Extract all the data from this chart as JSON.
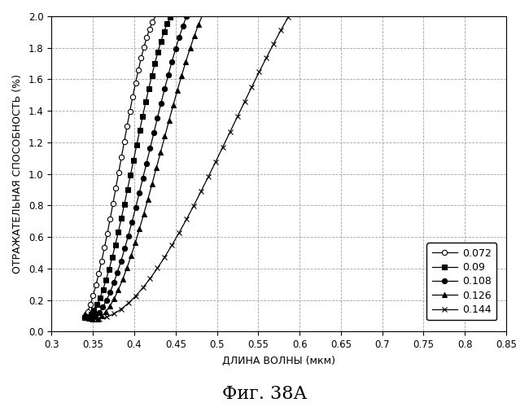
{
  "title": "Фиг. 38А",
  "xlabel": "ДЛИНА ВОЛНЫ (мкм)",
  "ylabel": "ОТРАЖАТЕЛЬНАЯ СПОСОБНОСТЬ (%)",
  "xlim": [
    0.3,
    0.85
  ],
  "ylim": [
    0.0,
    2.0
  ],
  "xticks": [
    0.3,
    0.35,
    0.4,
    0.45,
    0.5,
    0.55,
    0.6,
    0.65,
    0.7,
    0.75,
    0.8,
    0.85
  ],
  "yticks": [
    0.0,
    0.2,
    0.4,
    0.6,
    0.8,
    1.0,
    1.2,
    1.4,
    1.6,
    1.8,
    2.0
  ],
  "series": [
    {
      "label": "0.072",
      "marker": "o",
      "markerfacecolor": "white",
      "color": "black",
      "points": [
        [
          0.34,
          0.1
        ],
        [
          0.345,
          0.14
        ],
        [
          0.35,
          0.22
        ],
        [
          0.355,
          0.32
        ],
        [
          0.36,
          0.43
        ],
        [
          0.365,
          0.56
        ],
        [
          0.37,
          0.7
        ],
        [
          0.375,
          0.84
        ],
        [
          0.38,
          0.98
        ],
        [
          0.385,
          1.12
        ],
        [
          0.39,
          1.27
        ],
        [
          0.395,
          1.41
        ],
        [
          0.4,
          1.55
        ],
        [
          0.405,
          1.65
        ],
        [
          0.41,
          1.76
        ],
        [
          0.415,
          1.86
        ],
        [
          0.42,
          1.94
        ],
        [
          0.425,
          2.0
        ]
      ]
    },
    {
      "label": "0.09",
      "marker": "s",
      "markerfacecolor": "black",
      "color": "black",
      "points": [
        [
          0.34,
          0.08
        ],
        [
          0.345,
          0.1
        ],
        [
          0.35,
          0.13
        ],
        [
          0.355,
          0.18
        ],
        [
          0.36,
          0.24
        ],
        [
          0.365,
          0.31
        ],
        [
          0.37,
          0.4
        ],
        [
          0.375,
          0.5
        ],
        [
          0.38,
          0.61
        ],
        [
          0.385,
          0.73
        ],
        [
          0.39,
          0.86
        ],
        [
          0.395,
          0.99
        ],
        [
          0.4,
          1.12
        ],
        [
          0.405,
          1.24
        ],
        [
          0.41,
          1.36
        ],
        [
          0.415,
          1.48
        ],
        [
          0.42,
          1.59
        ],
        [
          0.425,
          1.7
        ],
        [
          0.43,
          1.8
        ],
        [
          0.435,
          1.89
        ],
        [
          0.44,
          1.97
        ],
        [
          0.445,
          2.0
        ]
      ]
    },
    {
      "label": "0.108",
      "marker": "o",
      "markerfacecolor": "black",
      "color": "black",
      "points": [
        [
          0.34,
          0.07
        ],
        [
          0.345,
          0.08
        ],
        [
          0.35,
          0.1
        ],
        [
          0.355,
          0.12
        ],
        [
          0.36,
          0.15
        ],
        [
          0.365,
          0.19
        ],
        [
          0.37,
          0.24
        ],
        [
          0.375,
          0.31
        ],
        [
          0.38,
          0.38
        ],
        [
          0.385,
          0.46
        ],
        [
          0.39,
          0.55
        ],
        [
          0.395,
          0.65
        ],
        [
          0.4,
          0.75
        ],
        [
          0.405,
          0.85
        ],
        [
          0.41,
          0.96
        ],
        [
          0.415,
          1.07
        ],
        [
          0.42,
          1.18
        ],
        [
          0.425,
          1.29
        ],
        [
          0.43,
          1.4
        ],
        [
          0.435,
          1.51
        ],
        [
          0.44,
          1.61
        ],
        [
          0.445,
          1.71
        ],
        [
          0.45,
          1.8
        ],
        [
          0.455,
          1.89
        ],
        [
          0.46,
          1.96
        ],
        [
          0.465,
          2.0
        ]
      ]
    },
    {
      "label": "0.126",
      "marker": "^",
      "markerfacecolor": "black",
      "color": "black",
      "points": [
        [
          0.34,
          0.07
        ],
        [
          0.345,
          0.08
        ],
        [
          0.35,
          0.09
        ],
        [
          0.355,
          0.1
        ],
        [
          0.36,
          0.12
        ],
        [
          0.365,
          0.14
        ],
        [
          0.37,
          0.17
        ],
        [
          0.375,
          0.21
        ],
        [
          0.38,
          0.26
        ],
        [
          0.385,
          0.31
        ],
        [
          0.39,
          0.38
        ],
        [
          0.395,
          0.45
        ],
        [
          0.4,
          0.53
        ],
        [
          0.405,
          0.62
        ],
        [
          0.41,
          0.71
        ],
        [
          0.415,
          0.8
        ],
        [
          0.42,
          0.9
        ],
        [
          0.425,
          1.0
        ],
        [
          0.43,
          1.1
        ],
        [
          0.435,
          1.2
        ],
        [
          0.44,
          1.3
        ],
        [
          0.445,
          1.4
        ],
        [
          0.45,
          1.5
        ],
        [
          0.455,
          1.59
        ],
        [
          0.46,
          1.68
        ],
        [
          0.465,
          1.77
        ],
        [
          0.47,
          1.85
        ],
        [
          0.475,
          1.92
        ],
        [
          0.48,
          1.98
        ],
        [
          0.485,
          2.0
        ]
      ]
    },
    {
      "label": "0.144",
      "marker": "x",
      "markerfacecolor": "black",
      "color": "black",
      "points": [
        [
          0.34,
          0.065
        ],
        [
          0.345,
          0.07
        ],
        [
          0.35,
          0.075
        ],
        [
          0.355,
          0.082
        ],
        [
          0.36,
          0.09
        ],
        [
          0.365,
          0.1
        ],
        [
          0.37,
          0.11
        ],
        [
          0.375,
          0.125
        ],
        [
          0.38,
          0.14
        ],
        [
          0.385,
          0.155
        ],
        [
          0.39,
          0.175
        ],
        [
          0.395,
          0.195
        ],
        [
          0.4,
          0.22
        ],
        [
          0.405,
          0.245
        ],
        [
          0.41,
          0.275
        ],
        [
          0.415,
          0.305
        ],
        [
          0.42,
          0.338
        ],
        [
          0.425,
          0.375
        ],
        [
          0.43,
          0.413
        ],
        [
          0.435,
          0.453
        ],
        [
          0.44,
          0.495
        ],
        [
          0.445,
          0.538
        ],
        [
          0.45,
          0.583
        ],
        [
          0.455,
          0.63
        ],
        [
          0.46,
          0.677
        ],
        [
          0.465,
          0.726
        ],
        [
          0.47,
          0.776
        ],
        [
          0.475,
          0.827
        ],
        [
          0.48,
          0.879
        ],
        [
          0.485,
          0.932
        ],
        [
          0.49,
          0.986
        ],
        [
          0.495,
          1.04
        ],
        [
          0.5,
          1.095
        ],
        [
          0.505,
          1.15
        ],
        [
          0.51,
          1.205
        ],
        [
          0.515,
          1.26
        ],
        [
          0.52,
          1.315
        ],
        [
          0.525,
          1.37
        ],
        [
          0.53,
          1.424
        ],
        [
          0.535,
          1.478
        ],
        [
          0.54,
          1.532
        ],
        [
          0.545,
          1.585
        ],
        [
          0.55,
          1.638
        ],
        [
          0.555,
          1.69
        ],
        [
          0.56,
          1.742
        ],
        [
          0.565,
          1.793
        ],
        [
          0.57,
          1.843
        ],
        [
          0.575,
          1.893
        ],
        [
          0.58,
          1.942
        ],
        [
          0.585,
          1.99
        ],
        [
          0.59,
          2.0
        ]
      ]
    }
  ],
  "background_color": "#ffffff",
  "grid_color": "#999999",
  "figsize": [
    6.5,
    5.0
  ],
  "dpi": 100
}
